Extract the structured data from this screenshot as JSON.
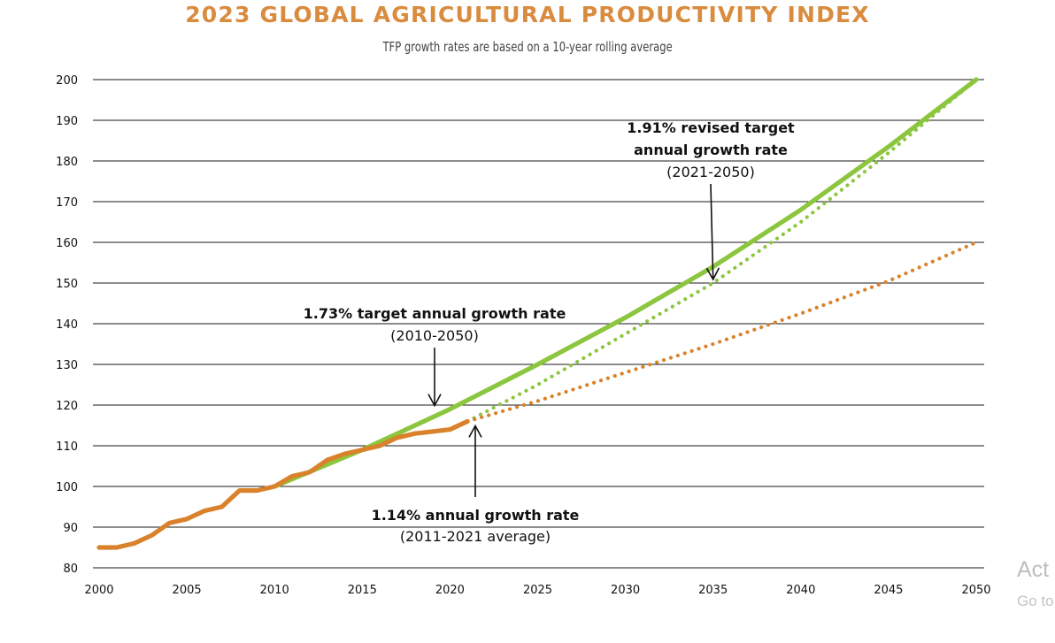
{
  "header": {
    "title": "2023 GLOBAL AGRICULTURAL PRODUCTIVITY INDEX",
    "subtitle": "TFP growth rates are based on a 10-year rolling average"
  },
  "chart_data": {
    "type": "line",
    "title": "2023 GLOBAL AGRICULTURAL PRODUCTIVITY INDEX",
    "subtitle": "TFP growth rates are based on a 10-year rolling average",
    "xlabel": "",
    "ylabel": "",
    "xlim": [
      2000,
      2050
    ],
    "ylim": [
      80,
      200
    ],
    "x_ticks": [
      2000,
      2005,
      2010,
      2015,
      2020,
      2025,
      2030,
      2035,
      2040,
      2045,
      2050
    ],
    "y_ticks": [
      80,
      90,
      100,
      110,
      120,
      130,
      140,
      150,
      160,
      170,
      180,
      190,
      200
    ],
    "grid": "horizontal",
    "colors": {
      "title": "#d98b3e",
      "actual": "#d9822b",
      "target": "#8cc63f",
      "dotted_green": "#8cc63f",
      "dotted_orange": "#d9822b"
    },
    "series": [
      {
        "style": "solid",
        "color": "#d9822b",
        "x": [
          2000,
          2001,
          2002,
          2003,
          2004,
          2005,
          2006,
          2007,
          2008,
          2009,
          2010,
          2011,
          2012,
          2013,
          2014,
          2015,
          2016,
          2017,
          2018,
          2019,
          2020,
          2021
        ],
        "values": [
          85,
          85,
          86,
          88,
          91,
          92,
          94,
          95,
          99,
          99,
          100,
          102.5,
          103.5,
          106.5,
          108,
          109,
          110,
          112,
          113,
          113.5,
          114,
          116
        ]
      },
      {
        "style": "solid",
        "color": "#8cc63f",
        "x": [
          2010,
          2015,
          2020,
          2025,
          2030,
          2035,
          2040,
          2045,
          2050
        ],
        "values": [
          100,
          109,
          119,
          130,
          141.5,
          154,
          168,
          183.5,
          200
        ]
      },
      {
        "style": "dotted",
        "color": "#8cc63f",
        "x": [
          2021,
          2025,
          2030,
          2035,
          2040,
          2045,
          2050
        ],
        "values": [
          116,
          125,
          137.5,
          150,
          165,
          182,
          200
        ]
      },
      {
        "style": "dotted",
        "color": "#d9822b",
        "x": [
          2021,
          2025,
          2030,
          2035,
          2040,
          2045,
          2050
        ],
        "values": [
          116,
          121,
          128,
          135,
          142.5,
          150.5,
          160
        ]
      }
    ],
    "annotations": [
      {
        "line1": "1.91% revised target",
        "line2": "annual growth rate",
        "line3": "(2021-2050)",
        "arrow_to": [
          2035,
          150
        ]
      },
      {
        "line1": "1.73% target annual growth rate",
        "line2": "(2010-2050)",
        "arrow_to": [
          2019,
          119
        ]
      },
      {
        "line1": "1.14% annual growth rate",
        "line2": "(2011-2021 average)",
        "arrow_to": [
          2021.3,
          116
        ]
      }
    ]
  },
  "overlay": {
    "line1": "Act",
    "line2": "Go to"
  }
}
